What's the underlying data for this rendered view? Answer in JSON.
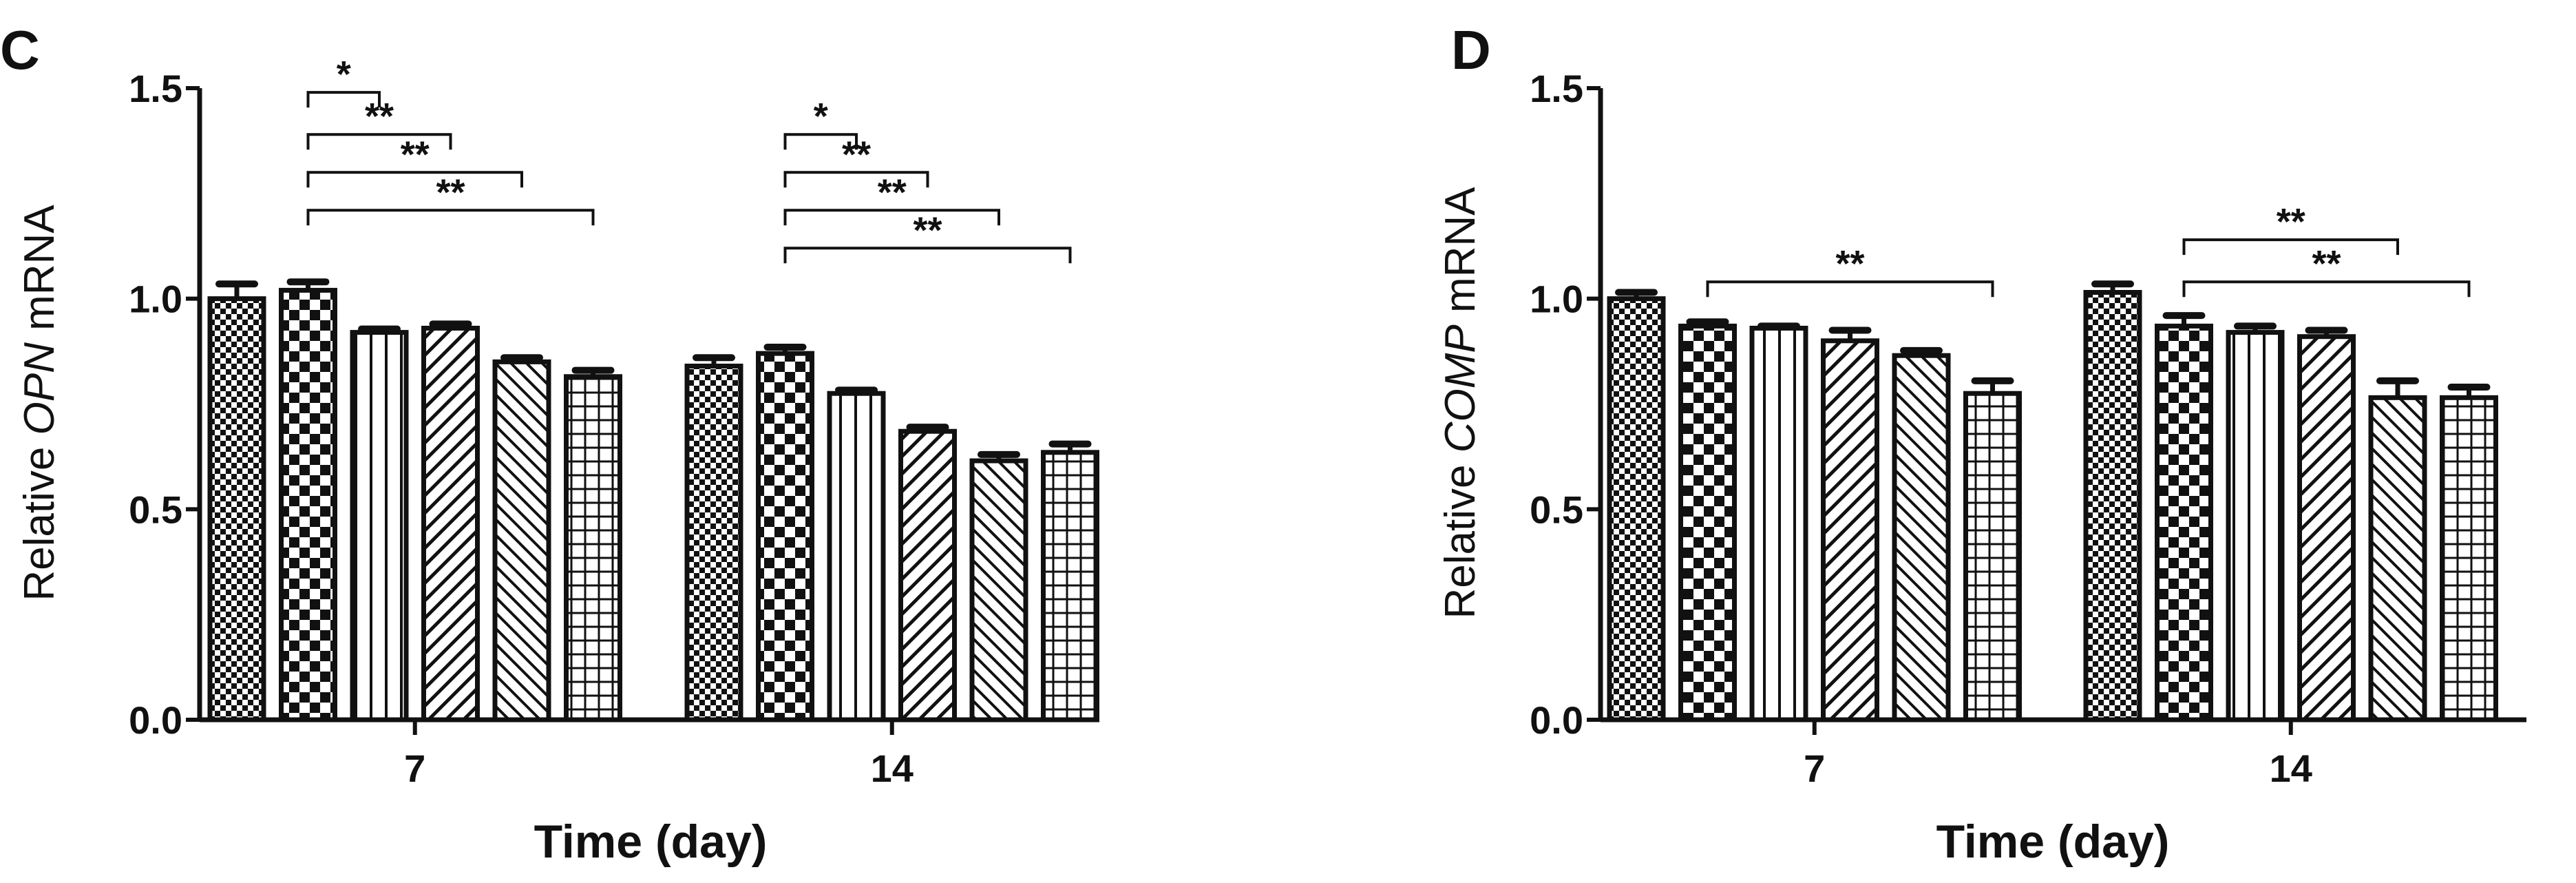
{
  "chart_data": [
    {
      "panel_label": "C",
      "type": "bar",
      "ylabel_prefix": "Relative ",
      "ylabel_gene": "OPN",
      "ylabel_suffix": " mRNA",
      "xlabel": "Time (day)",
      "ylim": [
        0,
        1.5
      ],
      "yticks": [
        "0.0",
        "0.5",
        "1.0",
        "1.5"
      ],
      "categories": [
        "7",
        "14"
      ],
      "series": [
        {
          "pattern": "checker-fine",
          "values": [
            1.0,
            0.84
          ],
          "errors": [
            0.035,
            0.02
          ]
        },
        {
          "pattern": "checker-coarse",
          "values": [
            1.02,
            0.87
          ],
          "errors": [
            0.02,
            0.015
          ]
        },
        {
          "pattern": "vertical-lines",
          "values": [
            0.92,
            0.775
          ],
          "errors": [
            0.008,
            0.008
          ]
        },
        {
          "pattern": "diagonal-forward",
          "values": [
            0.93,
            0.685
          ],
          "errors": [
            0.01,
            0.01
          ]
        },
        {
          "pattern": "diagonal-back",
          "values": [
            0.85,
            0.615
          ],
          "errors": [
            0.01,
            0.015
          ]
        },
        {
          "pattern": "grid",
          "values": [
            0.815,
            0.635
          ],
          "errors": [
            0.015,
            0.02
          ]
        }
      ],
      "significance": [
        {
          "group": 0,
          "from": 1,
          "to": 2,
          "label": "*",
          "y": 1.49
        },
        {
          "group": 0,
          "from": 1,
          "to": 3,
          "label": "**",
          "y": 1.39
        },
        {
          "group": 0,
          "from": 1,
          "to": 4,
          "label": "**",
          "y": 1.3
        },
        {
          "group": 0,
          "from": 1,
          "to": 5,
          "label": "**",
          "y": 1.21
        },
        {
          "group": 1,
          "from": 1,
          "to": 2,
          "label": "*",
          "y": 1.39
        },
        {
          "group": 1,
          "from": 1,
          "to": 3,
          "label": "**",
          "y": 1.3
        },
        {
          "group": 1,
          "from": 1,
          "to": 4,
          "label": "**",
          "y": 1.21
        },
        {
          "group": 1,
          "from": 1,
          "to": 5,
          "label": "**",
          "y": 1.12
        }
      ]
    },
    {
      "panel_label": "D",
      "type": "bar",
      "ylabel_prefix": "Relative ",
      "ylabel_gene": "COMP",
      "ylabel_suffix": " mRNA",
      "xlabel": "Time (day)",
      "ylim": [
        0,
        1.5
      ],
      "yticks": [
        "0.0",
        "0.5",
        "1.0",
        "1.5"
      ],
      "categories": [
        "7",
        "14"
      ],
      "series": [
        {
          "pattern": "checker-fine",
          "values": [
            1.0,
            1.015
          ],
          "errors": [
            0.015,
            0.02
          ]
        },
        {
          "pattern": "checker-coarse",
          "values": [
            0.935,
            0.935
          ],
          "errors": [
            0.01,
            0.025
          ]
        },
        {
          "pattern": "vertical-lines",
          "values": [
            0.93,
            0.92
          ],
          "errors": [
            0.005,
            0.015
          ]
        },
        {
          "pattern": "diagonal-forward",
          "values": [
            0.9,
            0.91
          ],
          "errors": [
            0.025,
            0.015
          ]
        },
        {
          "pattern": "diagonal-back",
          "values": [
            0.865,
            0.765
          ],
          "errors": [
            0.012,
            0.04
          ]
        },
        {
          "pattern": "grid",
          "values": [
            0.775,
            0.765
          ],
          "errors": [
            0.03,
            0.025
          ]
        }
      ],
      "significance": [
        {
          "group": 0,
          "from": 1,
          "to": 5,
          "label": "**",
          "y": 1.04
        },
        {
          "group": 1,
          "from": 1,
          "to": 4,
          "label": "**",
          "y": 1.14
        },
        {
          "group": 1,
          "from": 1,
          "to": 5,
          "label": "**",
          "y": 1.04
        }
      ]
    }
  ]
}
